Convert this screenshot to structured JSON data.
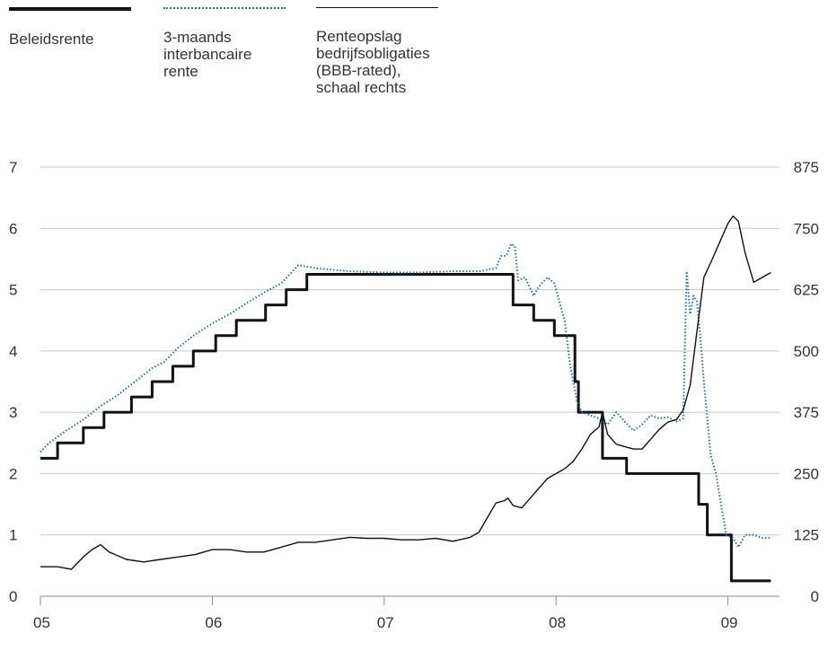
{
  "legend": [
    {
      "label": "Beleidsrente",
      "style": "thick-black",
      "color": "#111111"
    },
    {
      "label": "3-maands\ninterbancaire\nrente",
      "style": "dotted-blue",
      "color": "#1f6fb0"
    },
    {
      "label": "Renteopslag\nbedrijfsobligaties\n(BBB-rated),\nschaal rechts",
      "style": "thin-black",
      "color": "#111111"
    }
  ],
  "chart_data": {
    "type": "line",
    "x_ticks": [
      "05",
      "06",
      "07",
      "08",
      "09"
    ],
    "y_left_ticks": [
      "0",
      "1",
      "2",
      "3",
      "4",
      "5",
      "6",
      "7"
    ],
    "y_right_ticks": [
      "0",
      "125",
      "250",
      "375",
      "500",
      "625",
      "750",
      "875"
    ],
    "ylim_left": [
      0,
      7
    ],
    "ylim_right": [
      0,
      875
    ],
    "xlim": [
      2005.0,
      2009.3
    ],
    "grid": true,
    "series": [
      {
        "name": "Beleidsrente",
        "axis": "left",
        "style": "step",
        "color": "#111111",
        "points": [
          [
            2005.0,
            2.25
          ],
          [
            2005.1,
            2.5
          ],
          [
            2005.25,
            2.75
          ],
          [
            2005.37,
            3.0
          ],
          [
            2005.53,
            3.25
          ],
          [
            2005.65,
            3.5
          ],
          [
            2005.77,
            3.75
          ],
          [
            2005.89,
            4.0
          ],
          [
            2006.02,
            4.25
          ],
          [
            2006.14,
            4.5
          ],
          [
            2006.31,
            4.75
          ],
          [
            2006.43,
            5.0
          ],
          [
            2006.55,
            5.25
          ],
          [
            2007.75,
            4.75
          ],
          [
            2007.87,
            4.5
          ],
          [
            2007.99,
            4.25
          ],
          [
            2008.11,
            3.5
          ],
          [
            2008.13,
            3.0
          ],
          [
            2008.27,
            2.25
          ],
          [
            2008.41,
            2.0
          ],
          [
            2008.83,
            1.5
          ],
          [
            2008.88,
            1.0
          ],
          [
            2009.02,
            0.25
          ],
          [
            2009.25,
            0.25
          ]
        ]
      },
      {
        "name": "3-maands interbancaire rente",
        "axis": "left",
        "style": "dotted",
        "color": "#1f6fb0",
        "points": [
          [
            2005.0,
            2.35
          ],
          [
            2005.05,
            2.5
          ],
          [
            2005.15,
            2.7
          ],
          [
            2005.25,
            2.88
          ],
          [
            2005.35,
            3.1
          ],
          [
            2005.45,
            3.28
          ],
          [
            2005.55,
            3.5
          ],
          [
            2005.65,
            3.72
          ],
          [
            2005.72,
            3.82
          ],
          [
            2005.8,
            4.05
          ],
          [
            2005.9,
            4.27
          ],
          [
            2006.0,
            4.45
          ],
          [
            2006.1,
            4.6
          ],
          [
            2006.2,
            4.78
          ],
          [
            2006.3,
            4.95
          ],
          [
            2006.4,
            5.1
          ],
          [
            2006.5,
            5.4
          ],
          [
            2006.6,
            5.35
          ],
          [
            2006.8,
            5.3
          ],
          [
            2007.0,
            5.28
          ],
          [
            2007.2,
            5.28
          ],
          [
            2007.4,
            5.3
          ],
          [
            2007.55,
            5.3
          ],
          [
            2007.65,
            5.35
          ],
          [
            2007.68,
            5.55
          ],
          [
            2007.71,
            5.55
          ],
          [
            2007.74,
            5.75
          ],
          [
            2007.76,
            5.7
          ],
          [
            2007.78,
            5.15
          ],
          [
            2007.82,
            5.2
          ],
          [
            2007.87,
            4.9
          ],
          [
            2007.9,
            5.05
          ],
          [
            2007.95,
            5.2
          ],
          [
            2007.99,
            5.1
          ],
          [
            2008.02,
            4.8
          ],
          [
            2008.05,
            4.5
          ],
          [
            2008.08,
            3.8
          ],
          [
            2008.12,
            3.2
          ],
          [
            2008.15,
            3.0
          ],
          [
            2008.2,
            2.95
          ],
          [
            2008.25,
            2.9
          ],
          [
            2008.3,
            2.8
          ],
          [
            2008.35,
            3.0
          ],
          [
            2008.4,
            2.85
          ],
          [
            2008.45,
            2.7
          ],
          [
            2008.5,
            2.8
          ],
          [
            2008.55,
            2.95
          ],
          [
            2008.6,
            2.9
          ],
          [
            2008.65,
            2.92
          ],
          [
            2008.7,
            2.85
          ],
          [
            2008.74,
            2.9
          ],
          [
            2008.76,
            5.3
          ],
          [
            2008.78,
            4.6
          ],
          [
            2008.8,
            4.9
          ],
          [
            2008.82,
            4.8
          ],
          [
            2008.84,
            4.2
          ],
          [
            2008.86,
            3.5
          ],
          [
            2008.88,
            2.9
          ],
          [
            2008.9,
            2.3
          ],
          [
            2008.93,
            2.0
          ],
          [
            2008.96,
            1.5
          ],
          [
            2008.99,
            1.0
          ],
          [
            2009.03,
            0.95
          ],
          [
            2009.06,
            0.8
          ],
          [
            2009.1,
            1.0
          ],
          [
            2009.15,
            1.0
          ],
          [
            2009.2,
            0.95
          ],
          [
            2009.25,
            0.95
          ]
        ]
      },
      {
        "name": "Renteopslag bedrijfsobligaties (BBB-rated), schaal rechts",
        "axis": "right",
        "style": "solid",
        "color": "#111111",
        "points": [
          [
            2005.0,
            60
          ],
          [
            2005.1,
            60
          ],
          [
            2005.18,
            55
          ],
          [
            2005.25,
            80
          ],
          [
            2005.3,
            95
          ],
          [
            2005.35,
            105
          ],
          [
            2005.4,
            90
          ],
          [
            2005.5,
            75
          ],
          [
            2005.6,
            70
          ],
          [
            2005.7,
            75
          ],
          [
            2005.8,
            80
          ],
          [
            2005.9,
            85
          ],
          [
            2006.0,
            95
          ],
          [
            2006.1,
            95
          ],
          [
            2006.2,
            90
          ],
          [
            2006.3,
            90
          ],
          [
            2006.4,
            100
          ],
          [
            2006.5,
            110
          ],
          [
            2006.6,
            110
          ],
          [
            2006.7,
            115
          ],
          [
            2006.8,
            120
          ],
          [
            2006.9,
            118
          ],
          [
            2007.0,
            118
          ],
          [
            2007.1,
            115
          ],
          [
            2007.2,
            115
          ],
          [
            2007.3,
            118
          ],
          [
            2007.4,
            112
          ],
          [
            2007.5,
            120
          ],
          [
            2007.55,
            130
          ],
          [
            2007.6,
            160
          ],
          [
            2007.65,
            190
          ],
          [
            2007.7,
            195
          ],
          [
            2007.72,
            200
          ],
          [
            2007.75,
            185
          ],
          [
            2007.8,
            180
          ],
          [
            2007.85,
            200
          ],
          [
            2007.9,
            220
          ],
          [
            2007.95,
            240
          ],
          [
            2008.0,
            250
          ],
          [
            2008.05,
            260
          ],
          [
            2008.1,
            275
          ],
          [
            2008.15,
            300
          ],
          [
            2008.2,
            330
          ],
          [
            2008.25,
            345
          ],
          [
            2008.27,
            375
          ],
          [
            2008.3,
            330
          ],
          [
            2008.35,
            310
          ],
          [
            2008.4,
            305
          ],
          [
            2008.45,
            300
          ],
          [
            2008.5,
            300
          ],
          [
            2008.55,
            320
          ],
          [
            2008.6,
            340
          ],
          [
            2008.65,
            355
          ],
          [
            2008.7,
            360
          ],
          [
            2008.74,
            380
          ],
          [
            2008.78,
            430
          ],
          [
            2008.82,
            540
          ],
          [
            2008.86,
            650
          ],
          [
            2008.9,
            680
          ],
          [
            2008.95,
            720
          ],
          [
            2009.0,
            760
          ],
          [
            2009.03,
            775
          ],
          [
            2009.06,
            765
          ],
          [
            2009.1,
            700
          ],
          [
            2009.15,
            640
          ],
          [
            2009.2,
            650
          ],
          [
            2009.25,
            660
          ]
        ]
      }
    ]
  }
}
